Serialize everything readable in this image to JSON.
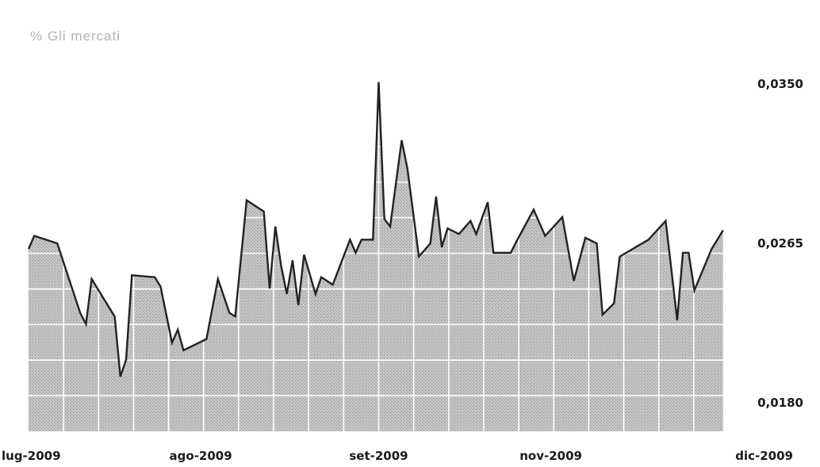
{
  "header_label": "% Gli mercati",
  "colors": {
    "area_fill": "#b8b8b8",
    "line": "#222222",
    "grid": "#ffffff",
    "text": "#1a1a1a"
  },
  "chart_data": {
    "type": "area",
    "title": "",
    "xlabel": "",
    "ylabel": "",
    "y_axis_side": "right",
    "ylim": [
      0.018,
      0.035
    ],
    "y_ticks": [
      {
        "value": 0.035,
        "label": "0,0350"
      },
      {
        "value": 0.0265,
        "label": "0,0265"
      },
      {
        "value": 0.018,
        "label": "0,0180"
      }
    ],
    "x_ticks": [
      {
        "x": 0,
        "label": "lug-2009"
      },
      {
        "x": 30,
        "label": "ago-2009"
      },
      {
        "x": 61,
        "label": "set-2009"
      },
      {
        "x": 91,
        "label": "nov-2009"
      },
      {
        "x": 122,
        "label": "dic-2009"
      }
    ],
    "xlim": [
      0,
      122
    ],
    "grid": true,
    "series": [
      {
        "points": [
          [
            0,
            0.0262
          ],
          [
            1,
            0.0269
          ],
          [
            5,
            0.0265
          ],
          [
            9,
            0.0228
          ],
          [
            10,
            0.0222
          ],
          [
            11,
            0.0246
          ],
          [
            15,
            0.0226
          ],
          [
            16,
            0.0194
          ],
          [
            17,
            0.0203
          ],
          [
            18,
            0.0248
          ],
          [
            22,
            0.0247
          ],
          [
            23,
            0.0242
          ],
          [
            25,
            0.0212
          ],
          [
            26,
            0.0219
          ],
          [
            27,
            0.0208
          ],
          [
            31,
            0.0214
          ],
          [
            33,
            0.0246
          ],
          [
            35,
            0.0228
          ],
          [
            36,
            0.0226
          ],
          [
            38,
            0.0288
          ],
          [
            41,
            0.0282
          ],
          [
            42,
            0.0241
          ],
          [
            43,
            0.0274
          ],
          [
            44,
            0.0253
          ],
          [
            45,
            0.0238
          ],
          [
            46,
            0.0256
          ],
          [
            47,
            0.0232
          ],
          [
            48,
            0.0259
          ],
          [
            50,
            0.0238
          ],
          [
            51,
            0.0247
          ],
          [
            53,
            0.0243
          ],
          [
            56,
            0.0267
          ],
          [
            57,
            0.026
          ],
          [
            58,
            0.0267
          ],
          [
            60,
            0.0267
          ],
          [
            61,
            0.0351
          ],
          [
            62,
            0.0278
          ],
          [
            63,
            0.0274
          ],
          [
            65,
            0.032
          ],
          [
            66,
            0.0305
          ],
          [
            68,
            0.0258
          ],
          [
            70,
            0.0265
          ],
          [
            71,
            0.029
          ],
          [
            72,
            0.0263
          ],
          [
            73,
            0.0273
          ],
          [
            75,
            0.027
          ],
          [
            77,
            0.0277
          ],
          [
            78,
            0.027
          ],
          [
            80,
            0.0287
          ],
          [
            81,
            0.026
          ],
          [
            84,
            0.026
          ],
          [
            85,
            0.0266
          ],
          [
            88,
            0.0283
          ],
          [
            90,
            0.0269
          ],
          [
            93,
            0.0279
          ],
          [
            95,
            0.0245
          ],
          [
            97,
            0.0268
          ],
          [
            99,
            0.0265
          ],
          [
            100,
            0.0227
          ],
          [
            102,
            0.0233
          ],
          [
            103,
            0.0258
          ],
          [
            108,
            0.0267
          ],
          [
            111,
            0.0277
          ],
          [
            112,
            0.0251
          ],
          [
            113,
            0.0224
          ],
          [
            114,
            0.026
          ],
          [
            115,
            0.026
          ],
          [
            116,
            0.024
          ],
          [
            119,
            0.0262
          ],
          [
            121,
            0.0272
          ]
        ]
      }
    ]
  }
}
